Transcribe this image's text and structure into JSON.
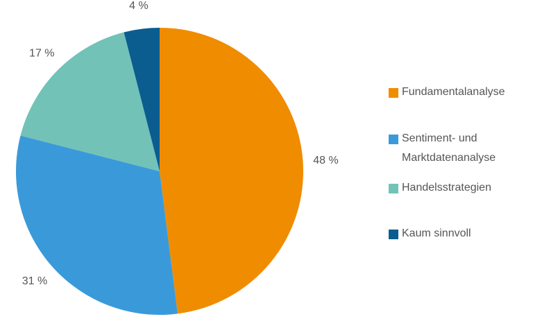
{
  "chart_data": {
    "type": "pie",
    "categories": [
      "Fundamentalanalyse",
      "Sentiment- und Marktdatenanalyse",
      "Handelsstrategien",
      "Kaum sinnvoll"
    ],
    "values": [
      48,
      31,
      17,
      4
    ],
    "value_labels": [
      "48 %",
      "31 %",
      "17 %",
      "4 %"
    ],
    "colors": [
      "#f08c00",
      "#3a9ad9",
      "#72c2b8",
      "#0b5d8f"
    ],
    "legend": "right"
  }
}
